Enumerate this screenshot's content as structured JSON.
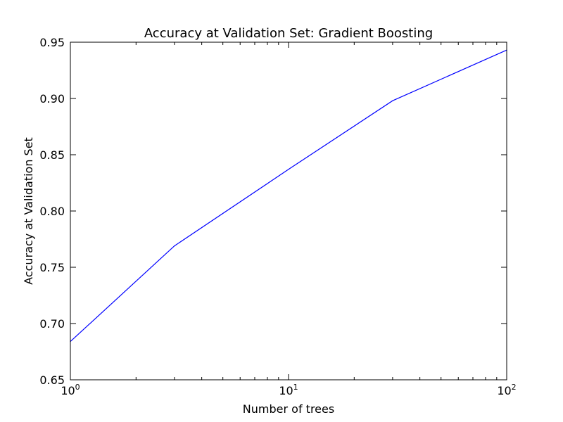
{
  "chart_data": {
    "type": "line",
    "title": "Accuracy at Validation Set: Gradient Boosting",
    "xlabel": "Number of trees",
    "ylabel": "Accuracy at Validation Set",
    "xscale": "log",
    "xlim": [
      1,
      100
    ],
    "ylim": [
      0.65,
      0.95
    ],
    "grid": false,
    "x_ticks": [
      {
        "base": "10",
        "exp": "0",
        "value": 1
      },
      {
        "base": "10",
        "exp": "1",
        "value": 10
      },
      {
        "base": "10",
        "exp": "2",
        "value": 100
      }
    ],
    "y_ticks": [
      "0.65",
      "0.70",
      "0.75",
      "0.80",
      "0.85",
      "0.90",
      "0.95"
    ],
    "series": [
      {
        "color": "#0000ff",
        "x": [
          1,
          3,
          10,
          30,
          100
        ],
        "y": [
          0.684,
          0.769,
          0.837,
          0.898,
          0.943
        ]
      }
    ]
  }
}
